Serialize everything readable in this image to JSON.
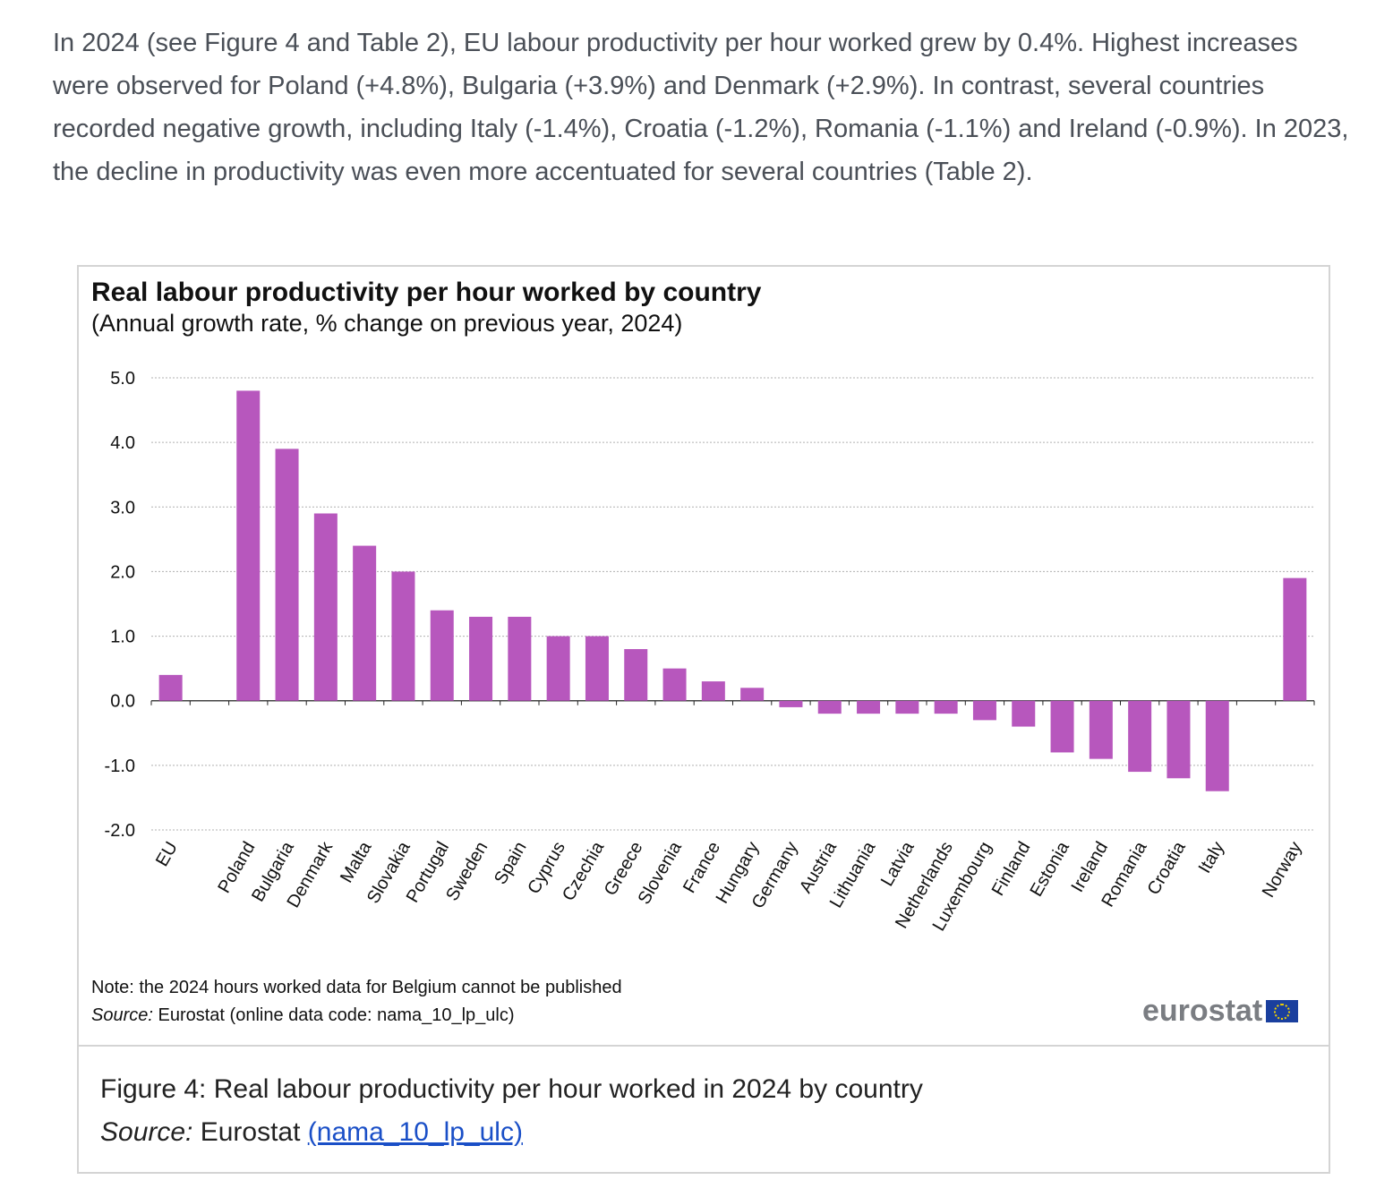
{
  "intro": "In 2024 (see Figure 4 and Table 2), EU labour productivity per hour worked grew by 0.4%. Highest increases were observed for Poland (+4.8%), Bulgaria (+3.9%) and Denmark (+2.9%). In contrast, several countries recorded negative growth, including Italy (-1.4%), Croatia (-1.2%), Romania (-1.1%) and Ireland (-0.9%). In 2023, the decline in productivity was even more accentuated for several countries (Table 2).",
  "chart_data": {
    "type": "bar",
    "title": "Real labour productivity per hour worked by country",
    "subtitle": "(Annual growth rate, % change on previous year, 2024)",
    "xlabel": "",
    "ylabel": "",
    "ylim": [
      -2,
      5
    ],
    "yticks": [
      "5.0",
      "4.0",
      "3.0",
      "2.0",
      "1.0",
      "0.0",
      "-1.0",
      "-2.0"
    ],
    "ytick_values": [
      5,
      4,
      3,
      2,
      1,
      0,
      -1,
      -2
    ],
    "grid": true,
    "bar_color": "#b757bd",
    "categories": [
      "EU",
      "",
      "Poland",
      "Bulgaria",
      "Denmark",
      "Malta",
      "Slovakia",
      "Portugal",
      "Sweden",
      "Spain",
      "Cyprus",
      "Czechia",
      "Greece",
      "Slovenia",
      "France",
      "Hungary",
      "Germany",
      "Austria",
      "Lithuania",
      "Latvia",
      "Netherlands",
      "Luxembourg",
      "Finland",
      "Estonia",
      "Ireland",
      "Romania",
      "Croatia",
      "Italy",
      "",
      "Norway"
    ],
    "values": [
      0.4,
      null,
      4.8,
      3.9,
      2.9,
      2.4,
      2.0,
      1.4,
      1.3,
      1.3,
      1.0,
      1.0,
      0.8,
      0.5,
      0.3,
      0.2,
      -0.1,
      -0.2,
      -0.2,
      -0.2,
      -0.2,
      -0.3,
      -0.4,
      -0.8,
      -0.9,
      -1.1,
      -1.2,
      -1.4,
      null,
      1.9
    ]
  },
  "note": "Note: the 2024 hours worked data for Belgium  cannot be published",
  "source_label": "Source:",
  "source_text": " Eurostat (online data code: nama_10_lp_ulc)",
  "logo_text": "eurostat",
  "caption": {
    "title": "Figure 4: Real labour productivity per hour worked in 2024 by country",
    "source_label": "Source:",
    "source_text": " Eurostat ",
    "link": "(nama_10_lp_ulc)"
  }
}
